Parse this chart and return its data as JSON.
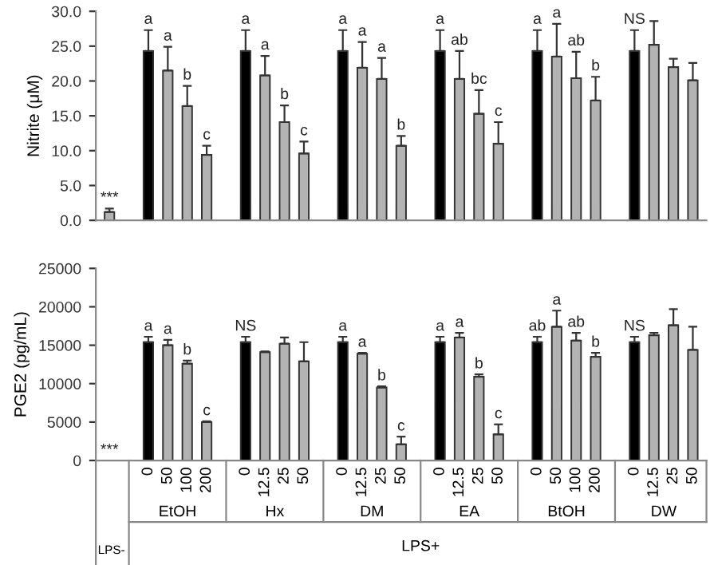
{
  "chart_data": [
    {
      "type": "bar",
      "ylabel": "Nitrite (μM)",
      "ylim": [
        0,
        30
      ],
      "yticks": [
        {
          "value": 0,
          "label": "0.0"
        },
        {
          "value": 5,
          "label": "5.0"
        },
        {
          "value": 10,
          "label": "10.0"
        },
        {
          "value": 15,
          "label": "15.0"
        },
        {
          "value": 20,
          "label": "20.0"
        },
        {
          "value": 25,
          "label": "25.0"
        },
        {
          "value": 30,
          "label": "30.0"
        }
      ],
      "tick_labels": "y",
      "grid": false,
      "categories": [
        null,
        null,
        null,
        null,
        null,
        null,
        null,
        null,
        null,
        null,
        null,
        null,
        null,
        null,
        null,
        null,
        null,
        null,
        null,
        null,
        null,
        null,
        null,
        null,
        null,
        null,
        null,
        null,
        null,
        null,
        null
      ],
      "values": [
        1.2,
        null,
        24.3,
        21.5,
        16.4,
        9.4,
        null,
        24.3,
        20.8,
        14.1,
        9.6,
        null,
        24.3,
        21.9,
        20.3,
        10.7,
        null,
        24.3,
        20.3,
        15.3,
        11.0,
        null,
        24.3,
        23.5,
        20.4,
        17.2,
        null,
        24.3,
        25.2,
        22.0,
        20.1
      ],
      "errors": [
        0.5,
        null,
        3.0,
        3.4,
        2.9,
        1.3,
        null,
        3.0,
        2.8,
        2.4,
        1.7,
        null,
        3.0,
        3.7,
        3.0,
        1.4,
        null,
        3.0,
        4.0,
        3.4,
        3.1,
        null,
        3.0,
        4.7,
        3.8,
        3.4,
        null,
        3.0,
        3.4,
        1.2,
        2.5
      ],
      "colors": [
        "#b3b3b3",
        null,
        "#000000",
        "#b3b3b3",
        "#b3b3b3",
        "#b3b3b3",
        null,
        "#000000",
        "#b3b3b3",
        "#b3b3b3",
        "#b3b3b3",
        null,
        "#000000",
        "#b3b3b3",
        "#b3b3b3",
        "#b3b3b3",
        null,
        "#000000",
        "#b3b3b3",
        "#b3b3b3",
        "#b3b3b3",
        null,
        "#000000",
        "#b3b3b3",
        "#b3b3b3",
        "#b3b3b3",
        null,
        "#000000",
        "#b3b3b3",
        "#b3b3b3",
        "#b3b3b3"
      ],
      "value_labels": [
        "***",
        null,
        "a",
        "a",
        "b",
        "c",
        null,
        "a",
        "a",
        "b",
        "c",
        null,
        "a",
        "a",
        "a",
        "b",
        null,
        "a",
        "ab",
        "bc",
        "c",
        null,
        "a",
        "a",
        "ab",
        "b",
        null,
        "NS",
        null,
        null,
        null
      ]
    },
    {
      "type": "bar",
      "ylabel": "PGE2 (pg/mL)",
      "ylim": [
        0,
        25000
      ],
      "yticks": [
        0,
        5000,
        10000,
        15000,
        20000,
        25000
      ],
      "grid": false,
      "categories": [
        null,
        null,
        "0",
        "50",
        "100",
        "200",
        null,
        "0",
        "12.5",
        "25",
        "50",
        null,
        "0",
        "12.5",
        "25",
        "50",
        null,
        "0",
        "12.5",
        "25",
        "50",
        null,
        "0",
        "50",
        "100",
        "200",
        null,
        "0",
        "12.5",
        "25",
        "50"
      ],
      "values": [
        0,
        null,
        15400,
        15000,
        12600,
        5000,
        null,
        15400,
        14100,
        15200,
        12900,
        null,
        15400,
        13900,
        9500,
        2100,
        null,
        15400,
        16000,
        10900,
        3400,
        null,
        15400,
        17400,
        15600,
        13500,
        null,
        15400,
        16300,
        17600,
        14400
      ],
      "errors": [
        null,
        null,
        700,
        700,
        400,
        100,
        null,
        700,
        100,
        800,
        2500,
        null,
        700,
        100,
        150,
        1000,
        null,
        700,
        600,
        300,
        1300,
        null,
        700,
        2100,
        1000,
        500,
        null,
        700,
        300,
        2100,
        3000
      ],
      "colors": [
        "#b3b3b3",
        null,
        "#000000",
        "#b3b3b3",
        "#b3b3b3",
        "#b3b3b3",
        null,
        "#000000",
        "#b3b3b3",
        "#b3b3b3",
        "#b3b3b3",
        null,
        "#000000",
        "#b3b3b3",
        "#b3b3b3",
        "#b3b3b3",
        null,
        "#000000",
        "#b3b3b3",
        "#b3b3b3",
        "#b3b3b3",
        null,
        "#000000",
        "#b3b3b3",
        "#b3b3b3",
        "#b3b3b3",
        null,
        "#000000",
        "#b3b3b3",
        "#b3b3b3",
        "#b3b3b3"
      ],
      "value_labels": [
        "***",
        null,
        "a",
        "a",
        "b",
        "c",
        null,
        "NS",
        null,
        null,
        null,
        null,
        "a",
        "a",
        "b",
        "c",
        null,
        "a",
        "a",
        "b",
        "c",
        null,
        "ab",
        "a",
        "ab",
        "b",
        null,
        "NS",
        null,
        null,
        null
      ],
      "annotations": [
        "EtOH",
        "Hx",
        "DM",
        "EA",
        "BtOH",
        "DW",
        "LPS+",
        "LPS-"
      ]
    }
  ]
}
